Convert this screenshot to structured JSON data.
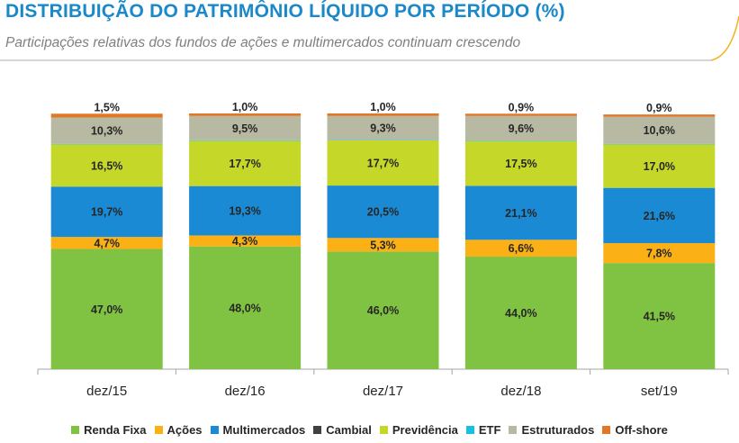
{
  "header": {
    "title": "DISTRIBUIÇÃO DO PATRIMÔNIO LÍQUIDO POR PERÍODO (%)",
    "subtitle": "Participações relativas dos fundos de ações e multimercados continuam crescendo",
    "accent_color": "#f5b21b",
    "line_color": "#c9c9c9"
  },
  "chart_data": {
    "type": "bar",
    "stacked": true,
    "categories": [
      "dez/15",
      "dez/16",
      "dez/17",
      "dez/18",
      "set/19"
    ],
    "ylim": [
      0,
      100
    ],
    "legend_position": "bottom",
    "grid": false,
    "series": [
      {
        "name": "Renda Fixa",
        "color": "#80c342",
        "values": [
          47.0,
          48.0,
          46.0,
          44.0,
          41.5
        ],
        "labels": [
          "47,0%",
          "48,0%",
          "46,0%",
          "44,0%",
          "41,5%"
        ]
      },
      {
        "name": "Ações",
        "color": "#fbb116",
        "values": [
          4.7,
          4.3,
          5.3,
          6.6,
          7.8
        ],
        "labels": [
          "4,7%",
          "4,3%",
          "5,3%",
          "6,6%",
          "7,8%"
        ]
      },
      {
        "name": "Multimercados",
        "color": "#1a8ad4",
        "values": [
          19.7,
          19.3,
          20.5,
          21.1,
          21.6
        ],
        "labels": [
          "19,7%",
          "19,3%",
          "20,5%",
          "21,1%",
          "21,6%"
        ]
      },
      {
        "name": "Cambial",
        "color": "#404040",
        "values": [
          0,
          0,
          0,
          0,
          0
        ],
        "labels": [
          "",
          "",
          "",
          "",
          ""
        ]
      },
      {
        "name": "Previdência",
        "color": "#c5d829",
        "values": [
          16.5,
          17.7,
          17.7,
          17.5,
          17.0
        ],
        "labels": [
          "16,5%",
          "17,7%",
          "17,7%",
          "17,5%",
          "17,0%"
        ]
      },
      {
        "name": "ETF",
        "color": "#17bfe0",
        "values": [
          0.2,
          0.2,
          0.2,
          0.2,
          0.2
        ],
        "labels": [
          "",
          "",
          "",
          "",
          ""
        ]
      },
      {
        "name": "Estruturados",
        "color": "#b8b9a3",
        "values": [
          10.3,
          9.5,
          9.3,
          9.6,
          10.6
        ],
        "labels": [
          "10,3%",
          "9,5%",
          "9,3%",
          "9,6%",
          "10,6%"
        ]
      },
      {
        "name": "Off-shore",
        "color": "#e07828",
        "values": [
          1.5,
          1.0,
          1.0,
          0.9,
          0.9
        ],
        "labels": [
          "1,5%",
          "1,0%",
          "1,0%",
          "0,9%",
          "0,9%"
        ]
      }
    ]
  }
}
